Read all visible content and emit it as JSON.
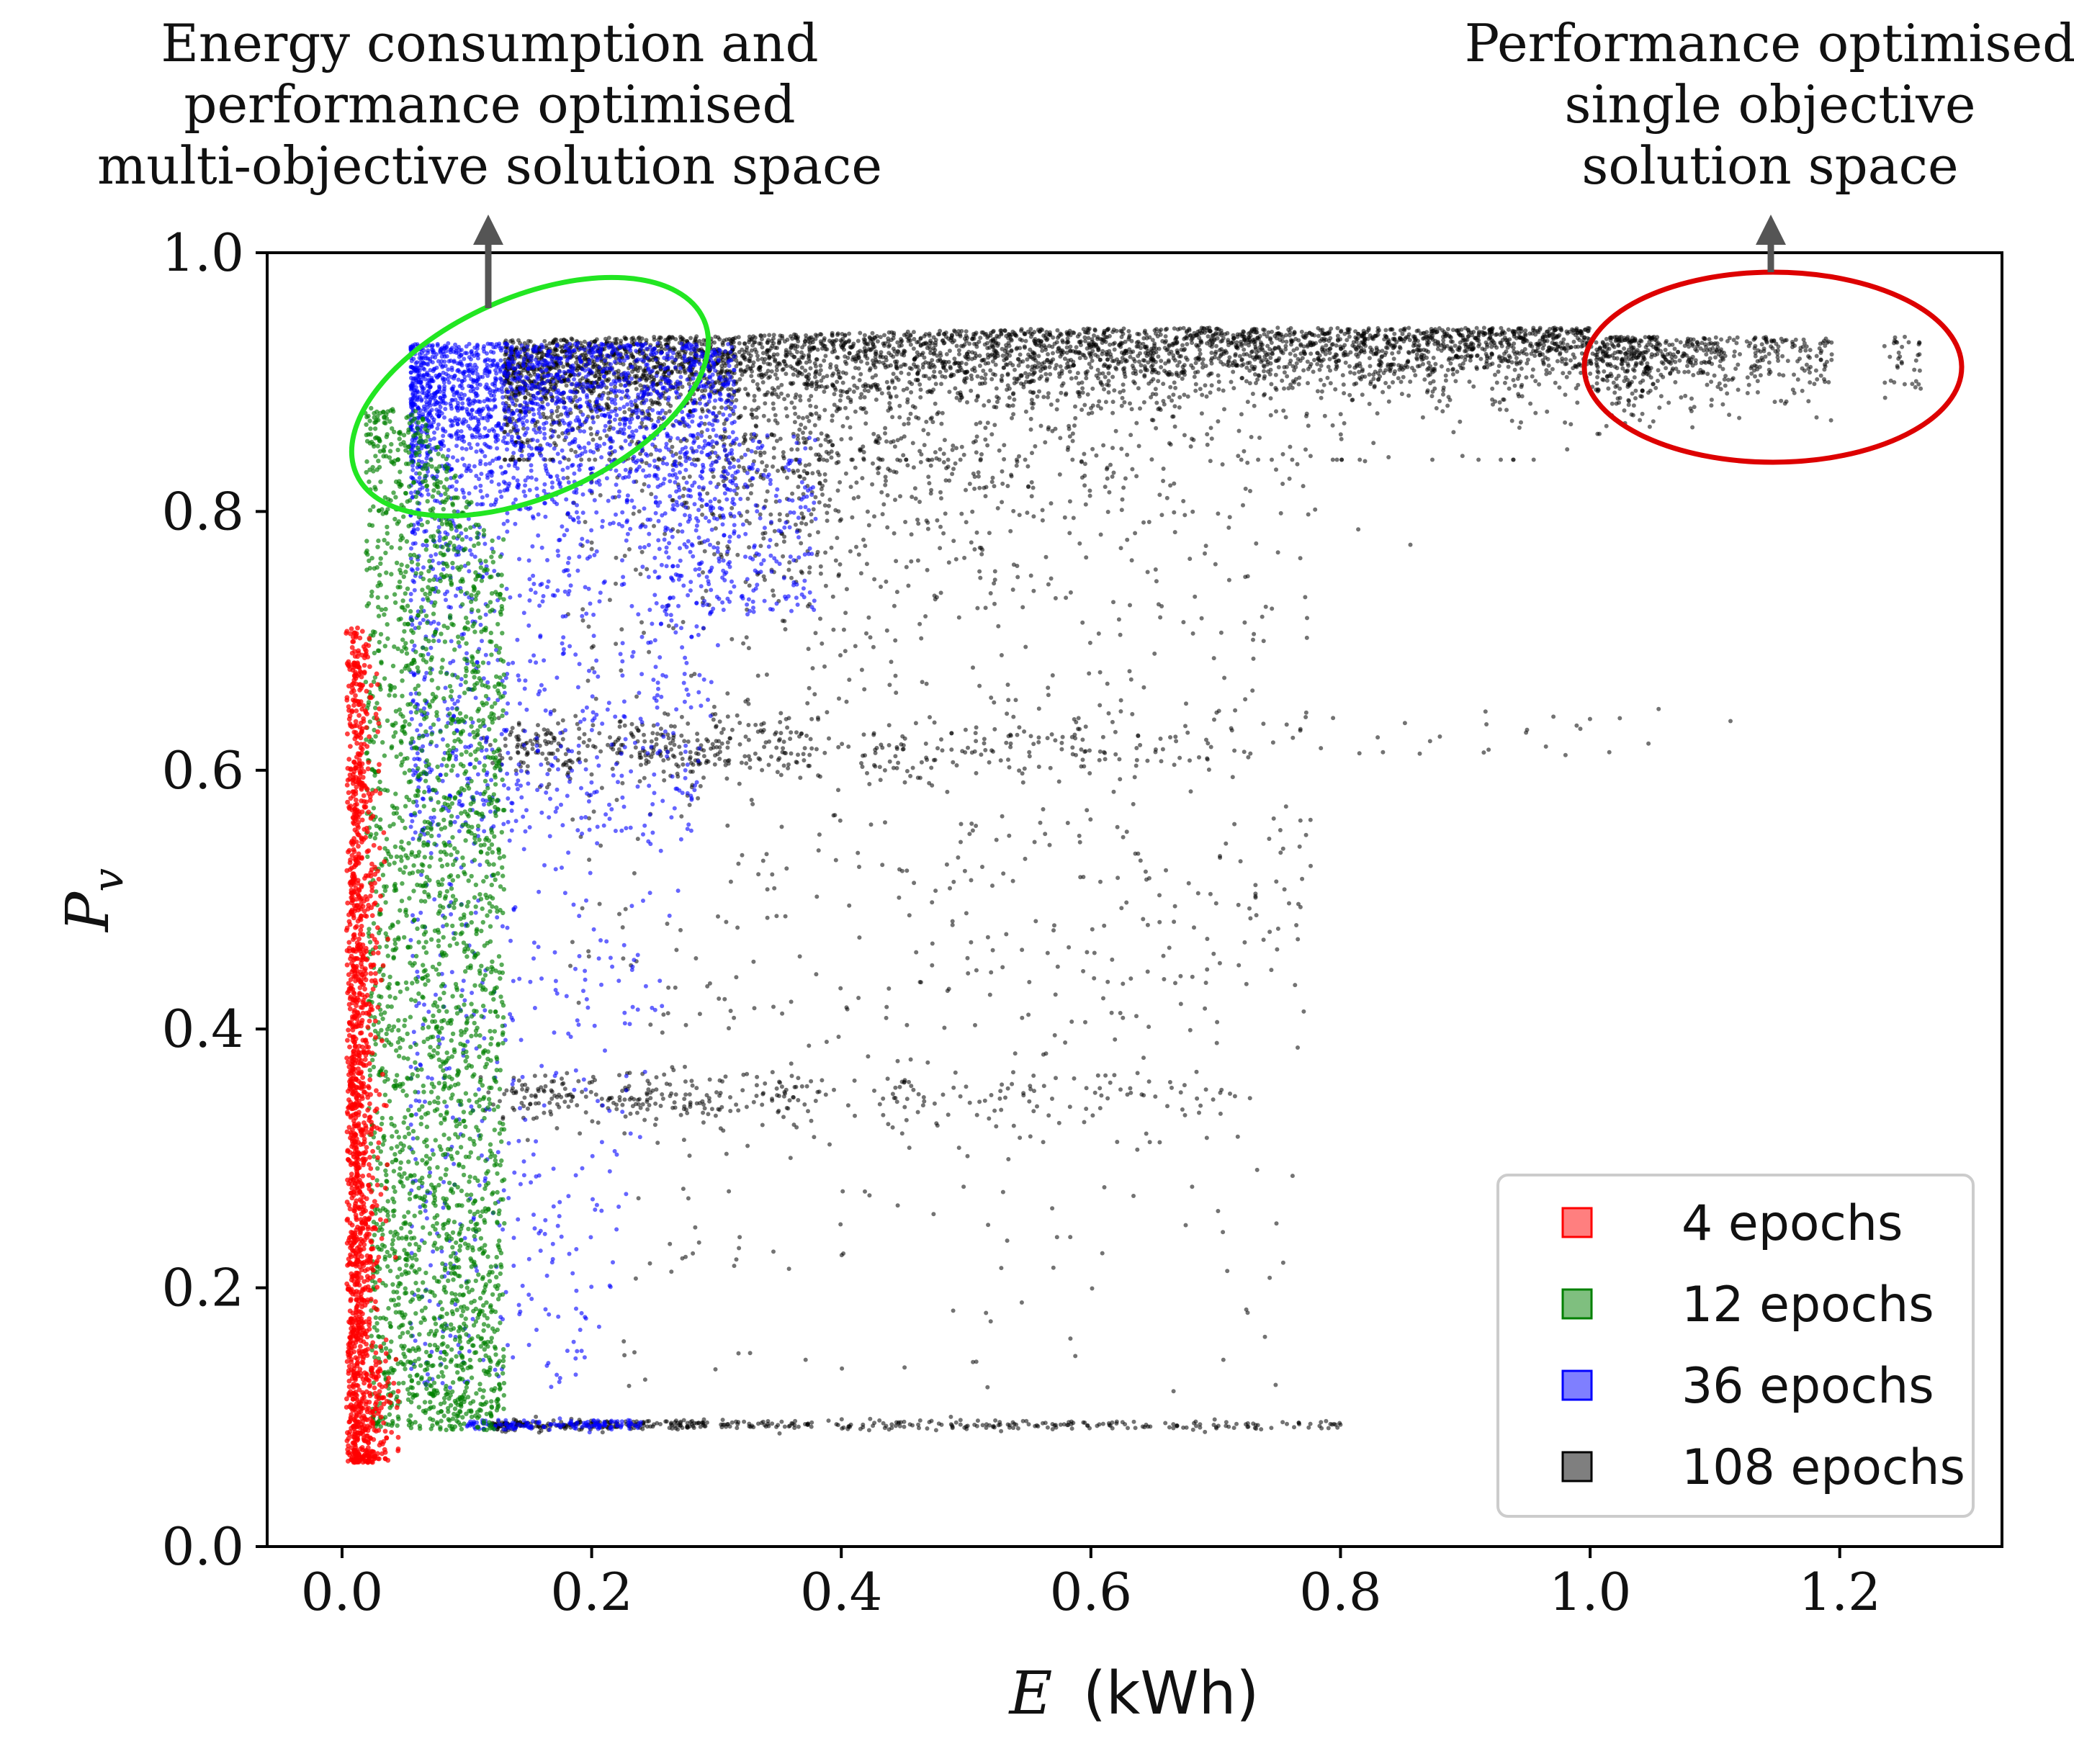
{
  "chart_data": {
    "type": "scatter",
    "xlabel_var": "E",
    "xlabel_unit": "(kWh)",
    "ylabel_var": "P",
    "ylabel_sub": "v",
    "xlim": [
      -0.06,
      1.33
    ],
    "ylim": [
      0.0,
      1.0
    ],
    "xticks": [
      0.0,
      0.2,
      0.4,
      0.6,
      0.8,
      1.0,
      1.2
    ],
    "xtick_labels": [
      "0.0",
      "0.2",
      "0.4",
      "0.6",
      "0.8",
      "1.0",
      "1.2"
    ],
    "yticks": [
      0.0,
      0.2,
      0.4,
      0.6,
      0.8,
      1.0
    ],
    "ytick_labels": [
      "0.0",
      "0.2",
      "0.4",
      "0.6",
      "0.8",
      "1.0"
    ],
    "legend_position": "bottom-right",
    "series": [
      {
        "name": "4 epochs",
        "label": "4 epochs",
        "color": "#ff0000",
        "e_range": [
          0.0,
          0.04
        ],
        "pv_range": [
          0.06,
          0.71
        ]
      },
      {
        "name": "12 epochs",
        "label": "12 epochs",
        "color": "#008000",
        "e_range": [
          0.01,
          0.13
        ],
        "pv_range": [
          0.09,
          0.88
        ]
      },
      {
        "name": "36 epochs",
        "label": "36 epochs",
        "color": "#0000ff",
        "e_range": [
          0.04,
          0.38
        ],
        "pv_range": [
          0.09,
          0.93
        ]
      },
      {
        "name": "108 epochs",
        "label": "108 epochs",
        "color": "#000000",
        "e_range": [
          0.1,
          1.27
        ],
        "pv_range": [
          0.09,
          0.95
        ]
      }
    ],
    "annotations": [
      {
        "id": "multi",
        "lines": [
          "Energy consumption  and",
          "performance optimised",
          "multi-objective solution space"
        ],
        "color": "#22e622",
        "ellipse_center": [
          0.16,
          0.86
        ],
        "arrow_x": 0.12
      },
      {
        "id": "single",
        "lines": [
          "Performance optimised",
          "single objective",
          "solution space"
        ],
        "color": "#dd0000",
        "ellipse_center": [
          1.15,
          0.91
        ],
        "arrow_x": 1.15
      }
    ]
  }
}
